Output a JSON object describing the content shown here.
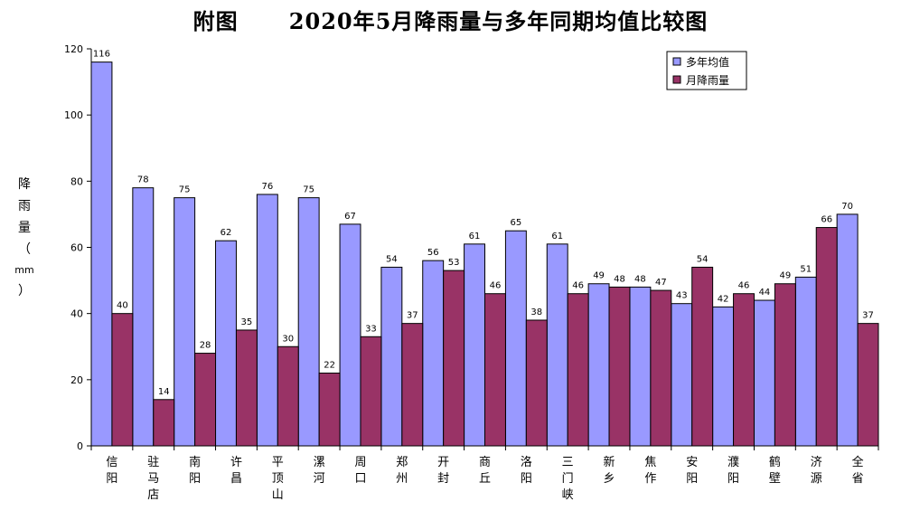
{
  "title": "附图      2020年5月降雨量与多年同期均值比较图",
  "ylabel_chars": [
    "降",
    "雨",
    "量",
    "（",
    "mm",
    "）"
  ],
  "chart_data": {
    "type": "bar",
    "title": "附图      2020年5月降雨量与多年同期均值比较图",
    "ylabel": "降雨量（mm）",
    "xlabel": "",
    "ylim": [
      0,
      120
    ],
    "yticks": [
      0,
      20,
      40,
      60,
      80,
      100,
      120
    ],
    "grid": false,
    "legend_position": "top-right",
    "categories": [
      "信阳",
      "驻马店",
      "南阳",
      "许昌",
      "平顶山",
      "漯河",
      "周口",
      "郑州",
      "开封",
      "商丘",
      "洛阳",
      "三门峡",
      "新乡",
      "焦作",
      "安阳",
      "濮阳",
      "鹤壁",
      "济源",
      "全省"
    ],
    "series": [
      {
        "name": "多年均值",
        "color": "#9999ff",
        "values": [
          116,
          78,
          75,
          62,
          76,
          75,
          67,
          54,
          56,
          61,
          65,
          61,
          49,
          48,
          43,
          42,
          44,
          51,
          70
        ]
      },
      {
        "name": "月降雨量",
        "color": "#993366",
        "values": [
          40,
          14,
          28,
          35,
          30,
          22,
          33,
          37,
          53,
          46,
          38,
          46,
          48,
          47,
          54,
          46,
          49,
          66,
          37
        ]
      }
    ]
  }
}
